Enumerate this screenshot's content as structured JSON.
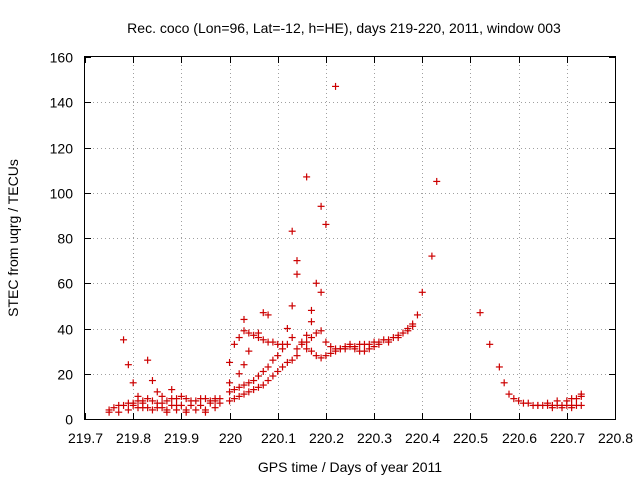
{
  "chart_data": {
    "type": "scatter",
    "title": "Rec. coco (Lon=96, Lat=-12, h=HE), days 219-220, 2011, window 003",
    "xlabel": "GPS time / Days of year 2011",
    "ylabel": "STEC from uqrg / TECUs",
    "xlim": [
      219.7,
      220.8
    ],
    "ylim": [
      0,
      160
    ],
    "xticks": [
      219.7,
      219.8,
      219.9,
      220,
      220.1,
      220.2,
      220.3,
      220.4,
      220.5,
      220.6,
      220.7,
      220.8
    ],
    "xtick_labels": [
      "219.7",
      "219.8",
      "219.9",
      "220",
      "220.1",
      "220.2",
      "220.3",
      "220.4",
      "220.5",
      "220.6",
      "220.7",
      "220.8"
    ],
    "yticks": [
      0,
      20,
      40,
      60,
      80,
      100,
      120,
      140,
      160
    ],
    "ytick_labels": [
      "0",
      "20",
      "40",
      "60",
      "80",
      "100",
      "120",
      "140",
      "160"
    ],
    "grid": true,
    "marker": "+",
    "color": "#cc0000",
    "series": [
      {
        "points": [
          [
            219.75,
            4
          ],
          [
            219.76,
            5
          ],
          [
            219.77,
            6
          ],
          [
            219.78,
            6
          ],
          [
            219.79,
            7
          ],
          [
            219.8,
            7
          ],
          [
            219.81,
            8
          ],
          [
            219.82,
            8
          ],
          [
            219.83,
            9
          ],
          [
            219.84,
            8
          ],
          [
            219.85,
            7
          ],
          [
            219.86,
            7
          ],
          [
            219.87,
            8
          ],
          [
            219.88,
            9
          ],
          [
            219.89,
            9
          ],
          [
            219.9,
            10
          ],
          [
            219.91,
            9
          ],
          [
            219.92,
            8
          ],
          [
            219.93,
            8
          ],
          [
            219.94,
            9
          ],
          [
            219.95,
            9
          ],
          [
            219.96,
            8
          ],
          [
            219.97,
            9
          ],
          [
            219.98,
            9
          ],
          [
            219.75,
            3
          ],
          [
            219.77,
            3
          ],
          [
            219.79,
            4
          ],
          [
            219.81,
            5
          ],
          [
            219.83,
            5
          ],
          [
            219.85,
            5
          ],
          [
            219.87,
            4
          ],
          [
            219.89,
            4
          ],
          [
            219.91,
            4
          ],
          [
            219.93,
            4
          ],
          [
            219.95,
            4
          ],
          [
            219.97,
            5
          ],
          [
            219.78,
            35
          ],
          [
            219.79,
            24
          ],
          [
            219.8,
            16
          ],
          [
            219.81,
            10
          ],
          [
            219.82,
            7
          ],
          [
            219.83,
            26
          ],
          [
            219.84,
            17
          ],
          [
            219.85,
            12
          ],
          [
            219.86,
            10
          ],
          [
            219.88,
            13
          ],
          [
            219.89,
            6
          ],
          [
            219.8,
            6
          ],
          [
            219.82,
            5
          ],
          [
            219.84,
            4
          ],
          [
            219.86,
            5
          ],
          [
            219.88,
            6
          ],
          [
            219.9,
            6
          ],
          [
            219.92,
            6
          ],
          [
            219.94,
            6
          ],
          [
            219.96,
            7
          ],
          [
            219.98,
            7
          ],
          [
            219.87,
            3
          ],
          [
            219.91,
            3
          ],
          [
            219.95,
            3
          ],
          [
            219.97,
            8
          ],
          [
            220.0,
            8
          ],
          [
            220.01,
            9
          ],
          [
            220.02,
            10
          ],
          [
            220.03,
            11
          ],
          [
            220.04,
            12
          ],
          [
            220.05,
            13
          ],
          [
            220.06,
            14
          ],
          [
            220.07,
            15
          ],
          [
            220.08,
            17
          ],
          [
            220.09,
            19
          ],
          [
            220.1,
            21
          ],
          [
            220.11,
            23
          ],
          [
            220.12,
            25
          ],
          [
            220.13,
            26
          ],
          [
            220.14,
            28
          ],
          [
            220.0,
            12
          ],
          [
            220.01,
            13
          ],
          [
            220.02,
            14
          ],
          [
            220.03,
            15
          ],
          [
            220.04,
            16
          ],
          [
            220.05,
            17
          ],
          [
            220.06,
            19
          ],
          [
            220.07,
            21
          ],
          [
            220.08,
            23
          ],
          [
            220.09,
            26
          ],
          [
            220.1,
            28
          ],
          [
            220.11,
            31
          ],
          [
            220.12,
            33
          ],
          [
            220.13,
            36
          ],
          [
            220.0,
            25
          ],
          [
            220.01,
            33
          ],
          [
            220.02,
            36
          ],
          [
            220.03,
            39
          ],
          [
            220.04,
            38
          ],
          [
            220.05,
            37
          ],
          [
            220.06,
            36
          ],
          [
            220.07,
            35
          ],
          [
            220.08,
            34
          ],
          [
            220.09,
            34
          ],
          [
            220.1,
            33
          ],
          [
            220.11,
            33
          ],
          [
            220.0,
            16
          ],
          [
            220.02,
            20
          ],
          [
            220.03,
            24
          ],
          [
            220.04,
            30
          ],
          [
            220.06,
            38
          ],
          [
            220.07,
            47
          ],
          [
            220.08,
            46
          ],
          [
            220.03,
            44
          ],
          [
            220.12,
            40
          ],
          [
            220.13,
            50
          ],
          [
            220.14,
            64
          ],
          [
            220.14,
            70
          ],
          [
            220.13,
            83
          ],
          [
            220.15,
            34
          ],
          [
            220.16,
            31
          ],
          [
            220.16,
            37
          ],
          [
            220.17,
            43
          ],
          [
            220.17,
            48
          ],
          [
            220.18,
            60
          ],
          [
            220.19,
            56
          ],
          [
            220.16,
            107
          ],
          [
            220.19,
            94
          ],
          [
            220.2,
            86
          ],
          [
            220.22,
            147
          ],
          [
            220.14,
            31
          ],
          [
            220.15,
            33
          ],
          [
            220.16,
            34
          ],
          [
            220.17,
            36
          ],
          [
            220.18,
            38
          ],
          [
            220.19,
            39
          ],
          [
            220.17,
            30
          ],
          [
            220.18,
            28
          ],
          [
            220.19,
            27
          ],
          [
            220.2,
            28
          ],
          [
            220.21,
            29
          ],
          [
            220.22,
            30
          ],
          [
            220.23,
            31
          ],
          [
            220.24,
            32
          ],
          [
            220.25,
            33
          ],
          [
            220.26,
            31
          ],
          [
            220.27,
            30
          ],
          [
            220.28,
            30
          ],
          [
            220.29,
            31
          ],
          [
            220.3,
            32
          ],
          [
            220.2,
            34
          ],
          [
            220.21,
            32
          ],
          [
            220.22,
            31
          ],
          [
            220.23,
            31
          ],
          [
            220.24,
            31
          ],
          [
            220.25,
            32
          ],
          [
            220.26,
            32
          ],
          [
            220.27,
            33
          ],
          [
            220.28,
            33
          ],
          [
            220.29,
            33
          ],
          [
            220.3,
            34
          ],
          [
            220.31,
            34
          ],
          [
            220.32,
            35
          ],
          [
            220.33,
            35
          ],
          [
            220.34,
            36
          ],
          [
            220.35,
            37
          ],
          [
            220.36,
            38
          ],
          [
            220.37,
            40
          ],
          [
            220.38,
            41
          ],
          [
            220.39,
            46
          ],
          [
            220.4,
            56
          ],
          [
            220.42,
            72
          ],
          [
            220.43,
            105
          ],
          [
            220.31,
            33
          ],
          [
            220.33,
            34
          ],
          [
            220.35,
            36
          ],
          [
            220.37,
            39
          ],
          [
            220.38,
            42
          ],
          [
            220.52,
            47
          ],
          [
            220.54,
            33
          ],
          [
            220.56,
            23
          ],
          [
            220.57,
            16
          ],
          [
            220.58,
            11
          ],
          [
            220.59,
            9
          ],
          [
            220.6,
            8
          ],
          [
            220.61,
            7
          ],
          [
            220.62,
            7
          ],
          [
            220.63,
            6
          ],
          [
            220.64,
            6
          ],
          [
            220.65,
            6
          ],
          [
            220.66,
            6
          ],
          [
            220.67,
            6
          ],
          [
            220.68,
            6
          ],
          [
            220.69,
            6
          ],
          [
            220.7,
            6
          ],
          [
            220.71,
            6
          ],
          [
            220.72,
            6
          ],
          [
            220.73,
            6
          ],
          [
            220.64,
            6
          ],
          [
            220.66,
            7
          ],
          [
            220.68,
            8
          ],
          [
            220.7,
            8
          ],
          [
            220.71,
            9
          ],
          [
            220.72,
            9
          ],
          [
            220.73,
            10
          ],
          [
            220.73,
            11
          ],
          [
            220.67,
            5
          ],
          [
            220.69,
            5
          ],
          [
            220.71,
            5
          ]
        ]
      }
    ]
  }
}
